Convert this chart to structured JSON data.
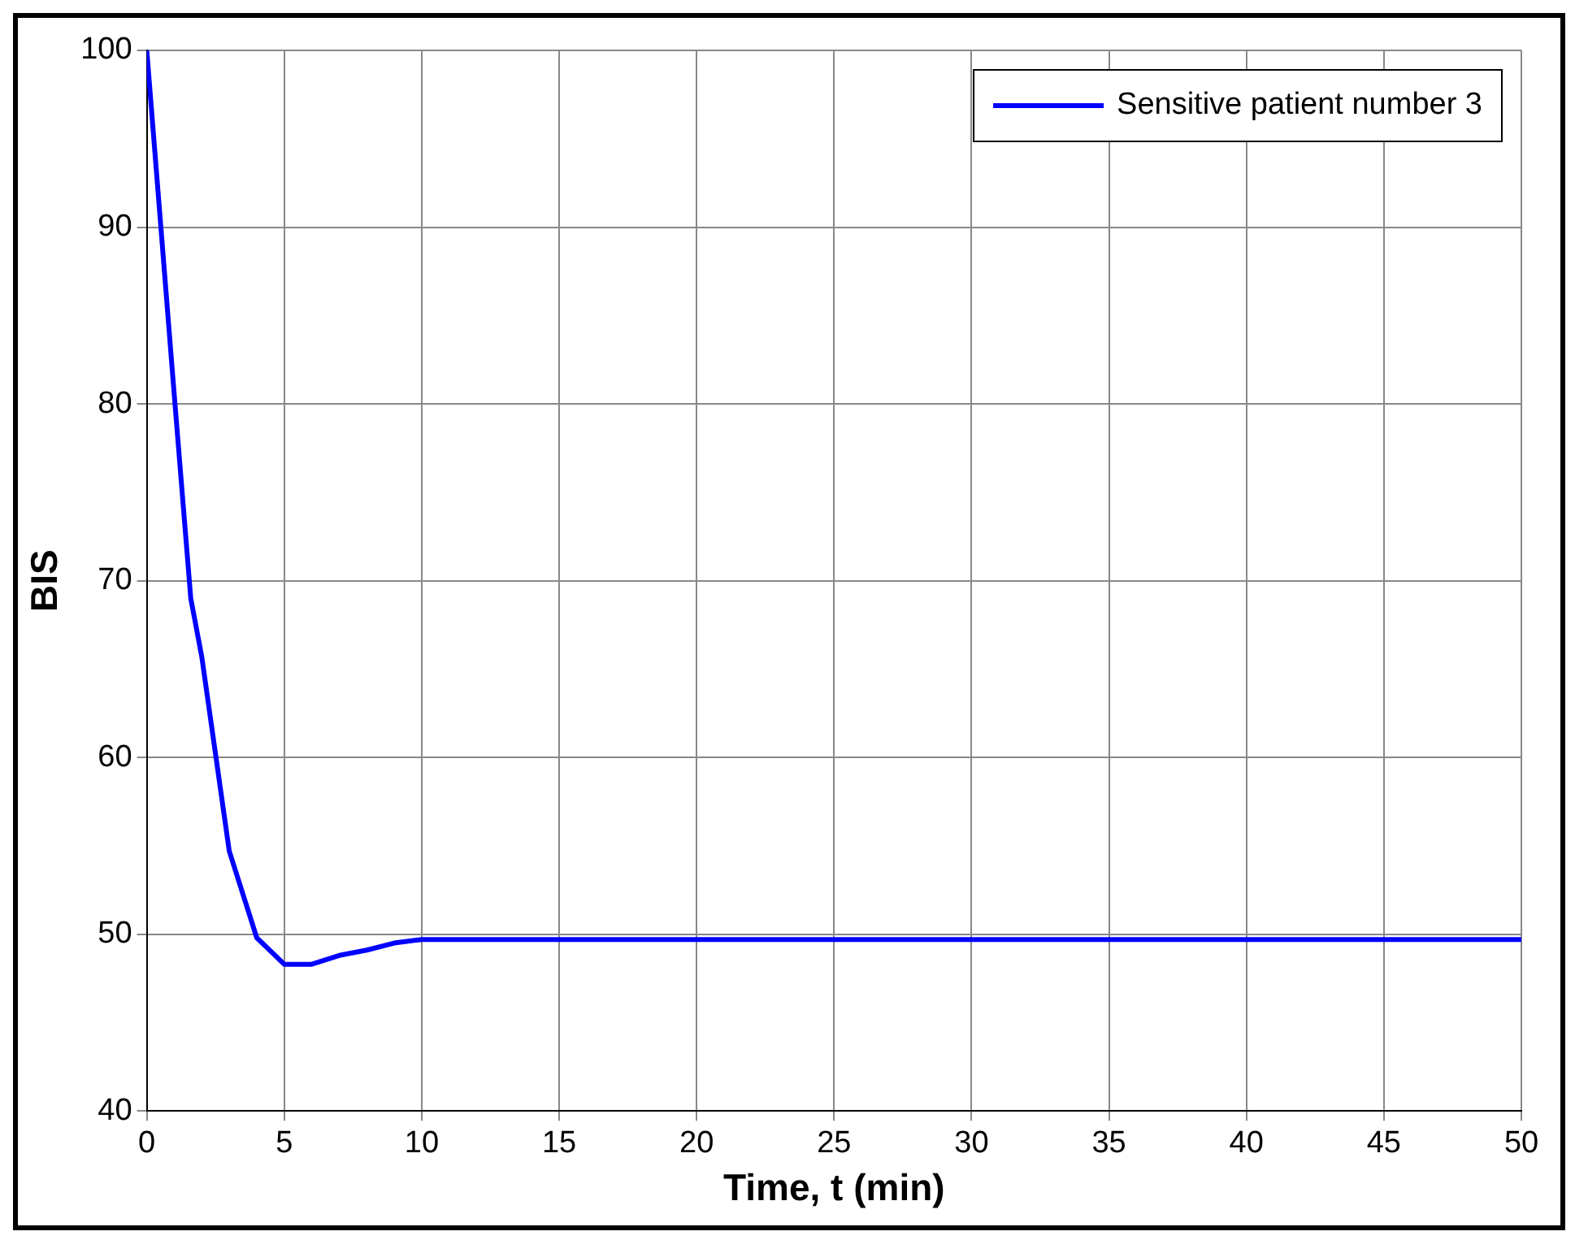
{
  "chart_data": {
    "type": "line",
    "xlabel": "Time, t (min)",
    "ylabel": "BIS",
    "xlim": [
      0,
      50
    ],
    "xticks": [
      0,
      5,
      10,
      15,
      20,
      25,
      30,
      35,
      40,
      45,
      50
    ],
    "ylim": [
      40,
      100
    ],
    "yticks": [
      40,
      50,
      60,
      70,
      80,
      90,
      100
    ],
    "grid": true,
    "legend": "top right",
    "marker": "none",
    "line_style": "solid",
    "series": [
      {
        "name": "Sensitive patient number 3",
        "color": "#0000ff",
        "x": [
          0,
          1,
          1.6,
          2,
          3,
          4,
          5,
          6,
          7,
          8,
          9,
          10,
          50
        ],
        "values": [
          100,
          80.5,
          69,
          65.7,
          54.7,
          49.8,
          48.3,
          48.3,
          48.8,
          49.1,
          49.5,
          49.7,
          49.7
        ]
      }
    ]
  }
}
